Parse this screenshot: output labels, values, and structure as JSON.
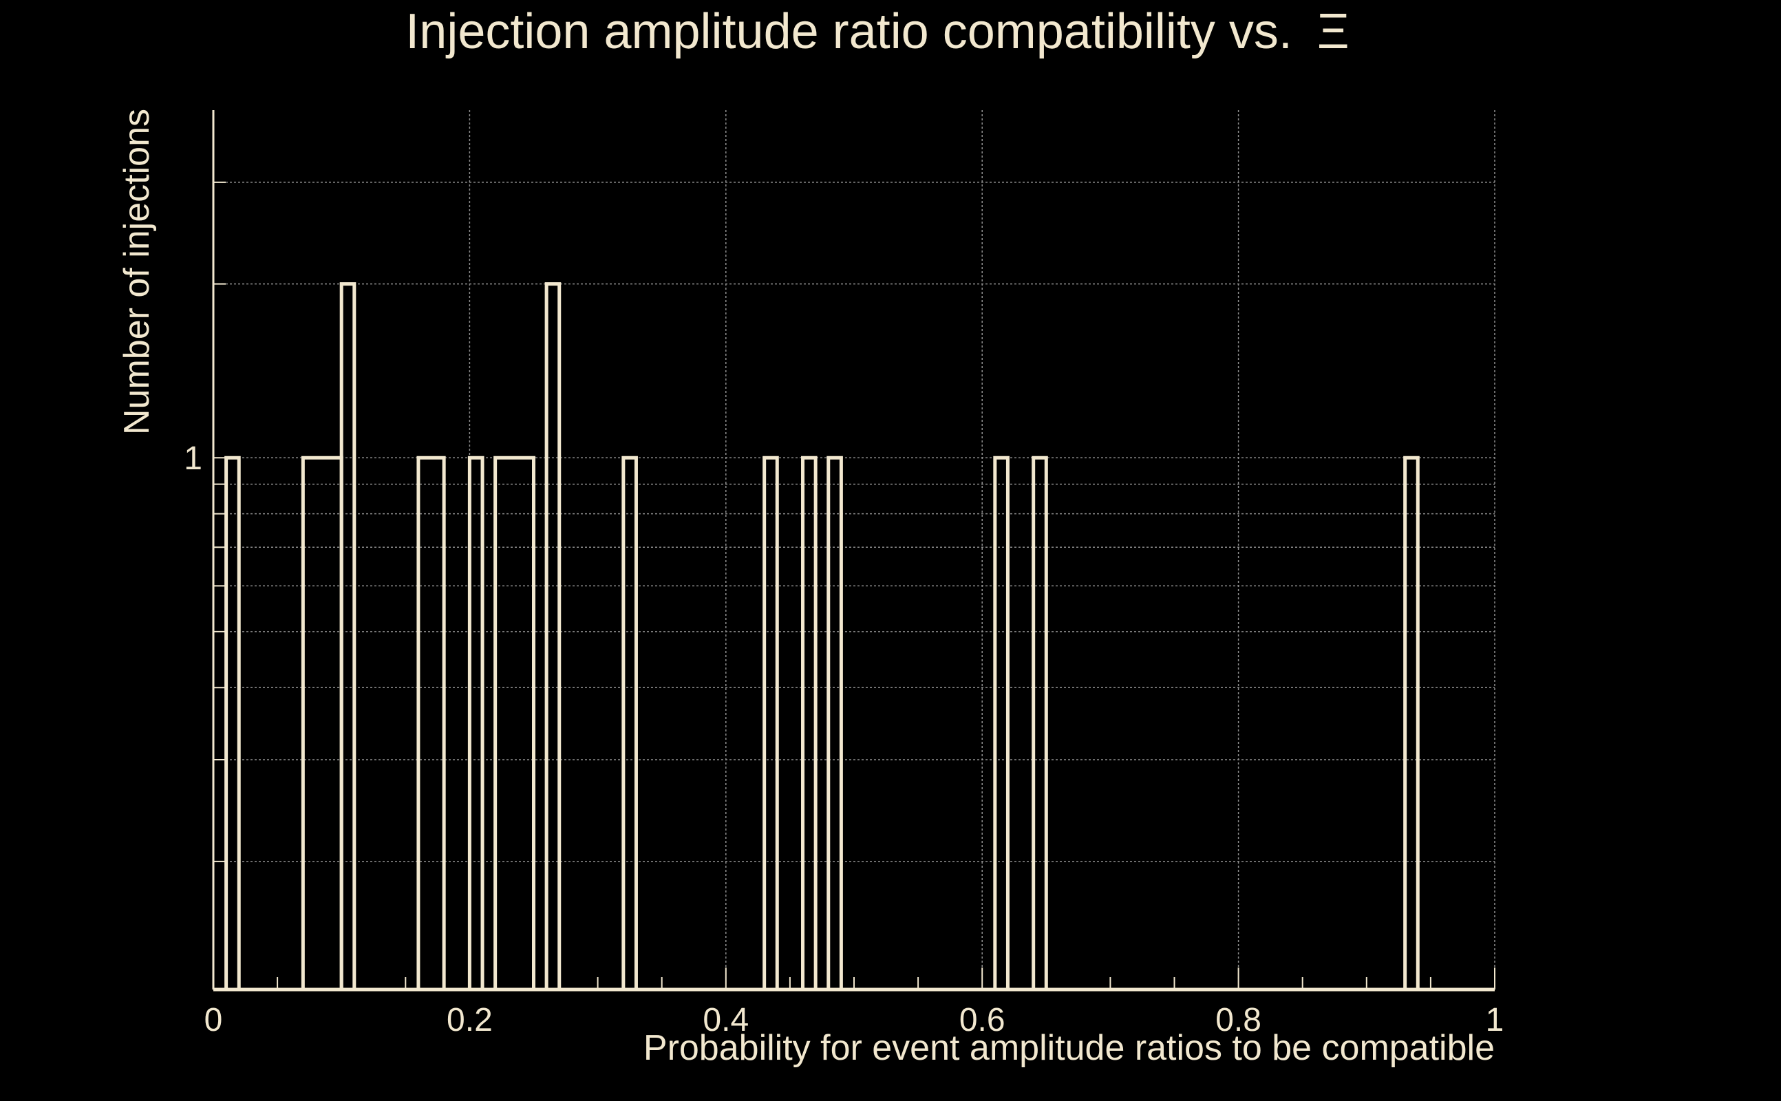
{
  "chart_data": {
    "type": "histogram",
    "title": "Injection amplitude ratio compatibility vs.",
    "title_symbol": "Ξ",
    "xlabel": "Probability for event amplitude ratios to be compatible",
    "ylabel": "Number of injections",
    "xlim": [
      0,
      1
    ],
    "ylim": [
      0.12,
      4
    ],
    "yscale": "log",
    "x_ticks": [
      0,
      0.2,
      0.4,
      0.6,
      0.8,
      1
    ],
    "x_tick_labels": [
      "0",
      "0.2",
      "0.4",
      "0.6",
      "0.8",
      "1"
    ],
    "y_ticks": [
      1
    ],
    "y_tick_labels": [
      "1"
    ],
    "y_gridlines": [
      0.2,
      0.3,
      0.4,
      0.5,
      0.6,
      0.7,
      0.8,
      0.9,
      1,
      2,
      3
    ],
    "grid": true,
    "bins": [
      {
        "x0": 0.01,
        "x1": 0.02,
        "count": 1
      },
      {
        "x0": 0.07,
        "x1": 0.1,
        "count": 1
      },
      {
        "x0": 0.1,
        "x1": 0.11,
        "count": 2
      },
      {
        "x0": 0.16,
        "x1": 0.18,
        "count": 1
      },
      {
        "x0": 0.2,
        "x1": 0.21,
        "count": 1
      },
      {
        "x0": 0.22,
        "x1": 0.25,
        "count": 1
      },
      {
        "x0": 0.26,
        "x1": 0.27,
        "count": 2
      },
      {
        "x0": 0.32,
        "x1": 0.33,
        "count": 1
      },
      {
        "x0": 0.43,
        "x1": 0.44,
        "count": 1
      },
      {
        "x0": 0.46,
        "x1": 0.47,
        "count": 1
      },
      {
        "x0": 0.48,
        "x1": 0.49,
        "count": 1
      },
      {
        "x0": 0.61,
        "x1": 0.62,
        "count": 1
      },
      {
        "x0": 0.64,
        "x1": 0.65,
        "count": 1
      },
      {
        "x0": 0.93,
        "x1": 0.94,
        "count": 1
      }
    ]
  },
  "colors": {
    "background": "#000000",
    "foreground": "#f2e8cf",
    "grid": "#8f8f8f"
  }
}
